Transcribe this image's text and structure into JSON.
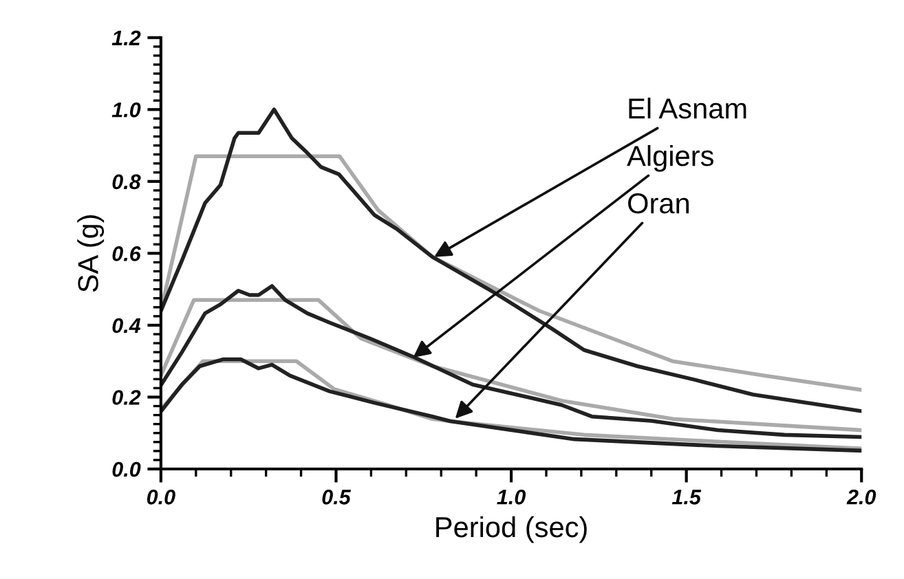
{
  "chart_data": {
    "type": "line",
    "xlabel": "Period (sec)",
    "ylabel": "SA (g)",
    "xlim": [
      0,
      2.0
    ],
    "ylim": [
      0,
      1.2
    ],
    "xticks": [
      {
        "value": 0,
        "label": "0.0"
      },
      {
        "value": 0.5,
        "label": "0.5"
      },
      {
        "value": 1.0,
        "label": "1.0"
      },
      {
        "value": 1.5,
        "label": "1.5"
      },
      {
        "value": 2.0,
        "label": "2.0"
      }
    ],
    "yticks": [
      {
        "value": 0,
        "label": "0.0"
      },
      {
        "value": 0.2,
        "label": "0.2"
      },
      {
        "value": 0.4,
        "label": "0.4"
      },
      {
        "value": 0.6,
        "label": "0.6"
      },
      {
        "value": 0.8,
        "label": "0.8"
      },
      {
        "value": 1.0,
        "label": "1.0"
      },
      {
        "value": 1.2,
        "label": "1.2"
      }
    ],
    "grid": false,
    "legend": false,
    "marker": "none",
    "line_style": "solid",
    "series": [
      {
        "color": "#aaaaaa",
        "x": [
          0,
          0.1,
          0.51,
          0.62,
          0.775,
          1.08,
          1.46,
          1.72,
          2.0
        ],
        "values": [
          0.44,
          0.87,
          0.87,
          0.72,
          0.59,
          0.44,
          0.3,
          0.26,
          0.22
        ]
      },
      {
        "color": "#222222",
        "x": [
          0,
          0.06,
          0.126,
          0.17,
          0.21,
          0.221,
          0.279,
          0.323,
          0.374,
          0.412,
          0.457,
          0.508,
          0.61,
          0.673,
          0.775,
          0.953,
          1.118,
          1.208,
          1.36,
          1.525,
          1.69,
          1.844,
          2.0
        ],
        "values": [
          0.44,
          0.58,
          0.74,
          0.79,
          0.92,
          0.935,
          0.935,
          1.0,
          0.92,
          0.885,
          0.84,
          0.82,
          0.706,
          0.668,
          0.59,
          0.49,
          0.389,
          0.331,
          0.286,
          0.248,
          0.207,
          0.184,
          0.161
        ]
      },
      {
        "color": "#aaaaaa",
        "x": [
          0,
          0.094,
          0.45,
          0.571,
          0.775,
          0.826,
          1.144,
          1.462,
          2.0
        ],
        "values": [
          0.26,
          0.47,
          0.47,
          0.363,
          0.286,
          0.273,
          0.19,
          0.139,
          0.108
        ]
      },
      {
        "color": "#222222",
        "x": [
          0,
          0.06,
          0.126,
          0.17,
          0.221,
          0.253,
          0.279,
          0.317,
          0.355,
          0.418,
          0.482,
          0.597,
          0.725,
          0.89,
          1.144,
          1.23,
          1.4,
          1.59,
          1.78,
          2.0
        ],
        "values": [
          0.233,
          0.325,
          0.433,
          0.458,
          0.496,
          0.484,
          0.484,
          0.509,
          0.47,
          0.433,
          0.407,
          0.363,
          0.31,
          0.235,
          0.178,
          0.146,
          0.134,
          0.108,
          0.095,
          0.089
        ]
      },
      {
        "color": "#aaaaaa",
        "x": [
          0,
          0.12,
          0.387,
          0.495,
          0.648,
          0.775,
          0.826,
          1.208,
          1.59,
          2.0
        ],
        "values": [
          0.166,
          0.3,
          0.3,
          0.222,
          0.178,
          0.139,
          0.133,
          0.095,
          0.076,
          0.057
        ]
      },
      {
        "color": "#222222",
        "x": [
          0,
          0.06,
          0.111,
          0.177,
          0.228,
          0.279,
          0.317,
          0.368,
          0.482,
          0.61,
          0.775,
          0.826,
          1.18,
          1.59,
          2.0
        ],
        "values": [
          0.16,
          0.235,
          0.286,
          0.305,
          0.305,
          0.28,
          0.29,
          0.26,
          0.216,
          0.184,
          0.146,
          0.133,
          0.083,
          0.064,
          0.051
        ]
      }
    ],
    "annotations": [
      {
        "text": "El Asnam",
        "x": 0.78,
        "y": 0.59
      },
      {
        "text": "Algiers",
        "x": 0.72,
        "y": 0.31
      },
      {
        "text": "Oran",
        "x": 0.84,
        "y": 0.14
      }
    ]
  }
}
